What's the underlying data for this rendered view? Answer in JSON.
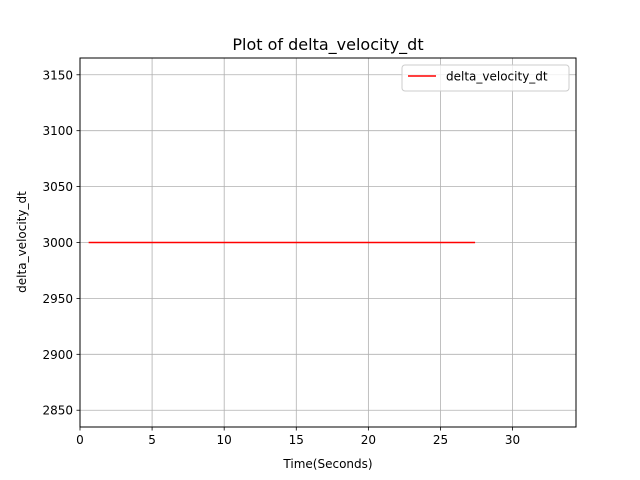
{
  "chart_data": {
    "type": "line",
    "title": "Plot of delta_velocity_dt",
    "xlabel": "Time(Seconds)",
    "ylabel": "delta_velocity_dt",
    "xlim": [
      0,
      34.4
    ],
    "ylim": [
      2835,
      3165
    ],
    "xticks": [
      0,
      5,
      10,
      15,
      20,
      25,
      30
    ],
    "yticks": [
      2850,
      2900,
      2950,
      3000,
      3050,
      3100,
      3150
    ],
    "grid": true,
    "legend_position": "top-right",
    "series": [
      {
        "name": "delta_velocity_dt",
        "color": "#ff0000",
        "x": [
          0.6,
          27.4
        ],
        "y": [
          3000,
          3000
        ]
      }
    ]
  }
}
